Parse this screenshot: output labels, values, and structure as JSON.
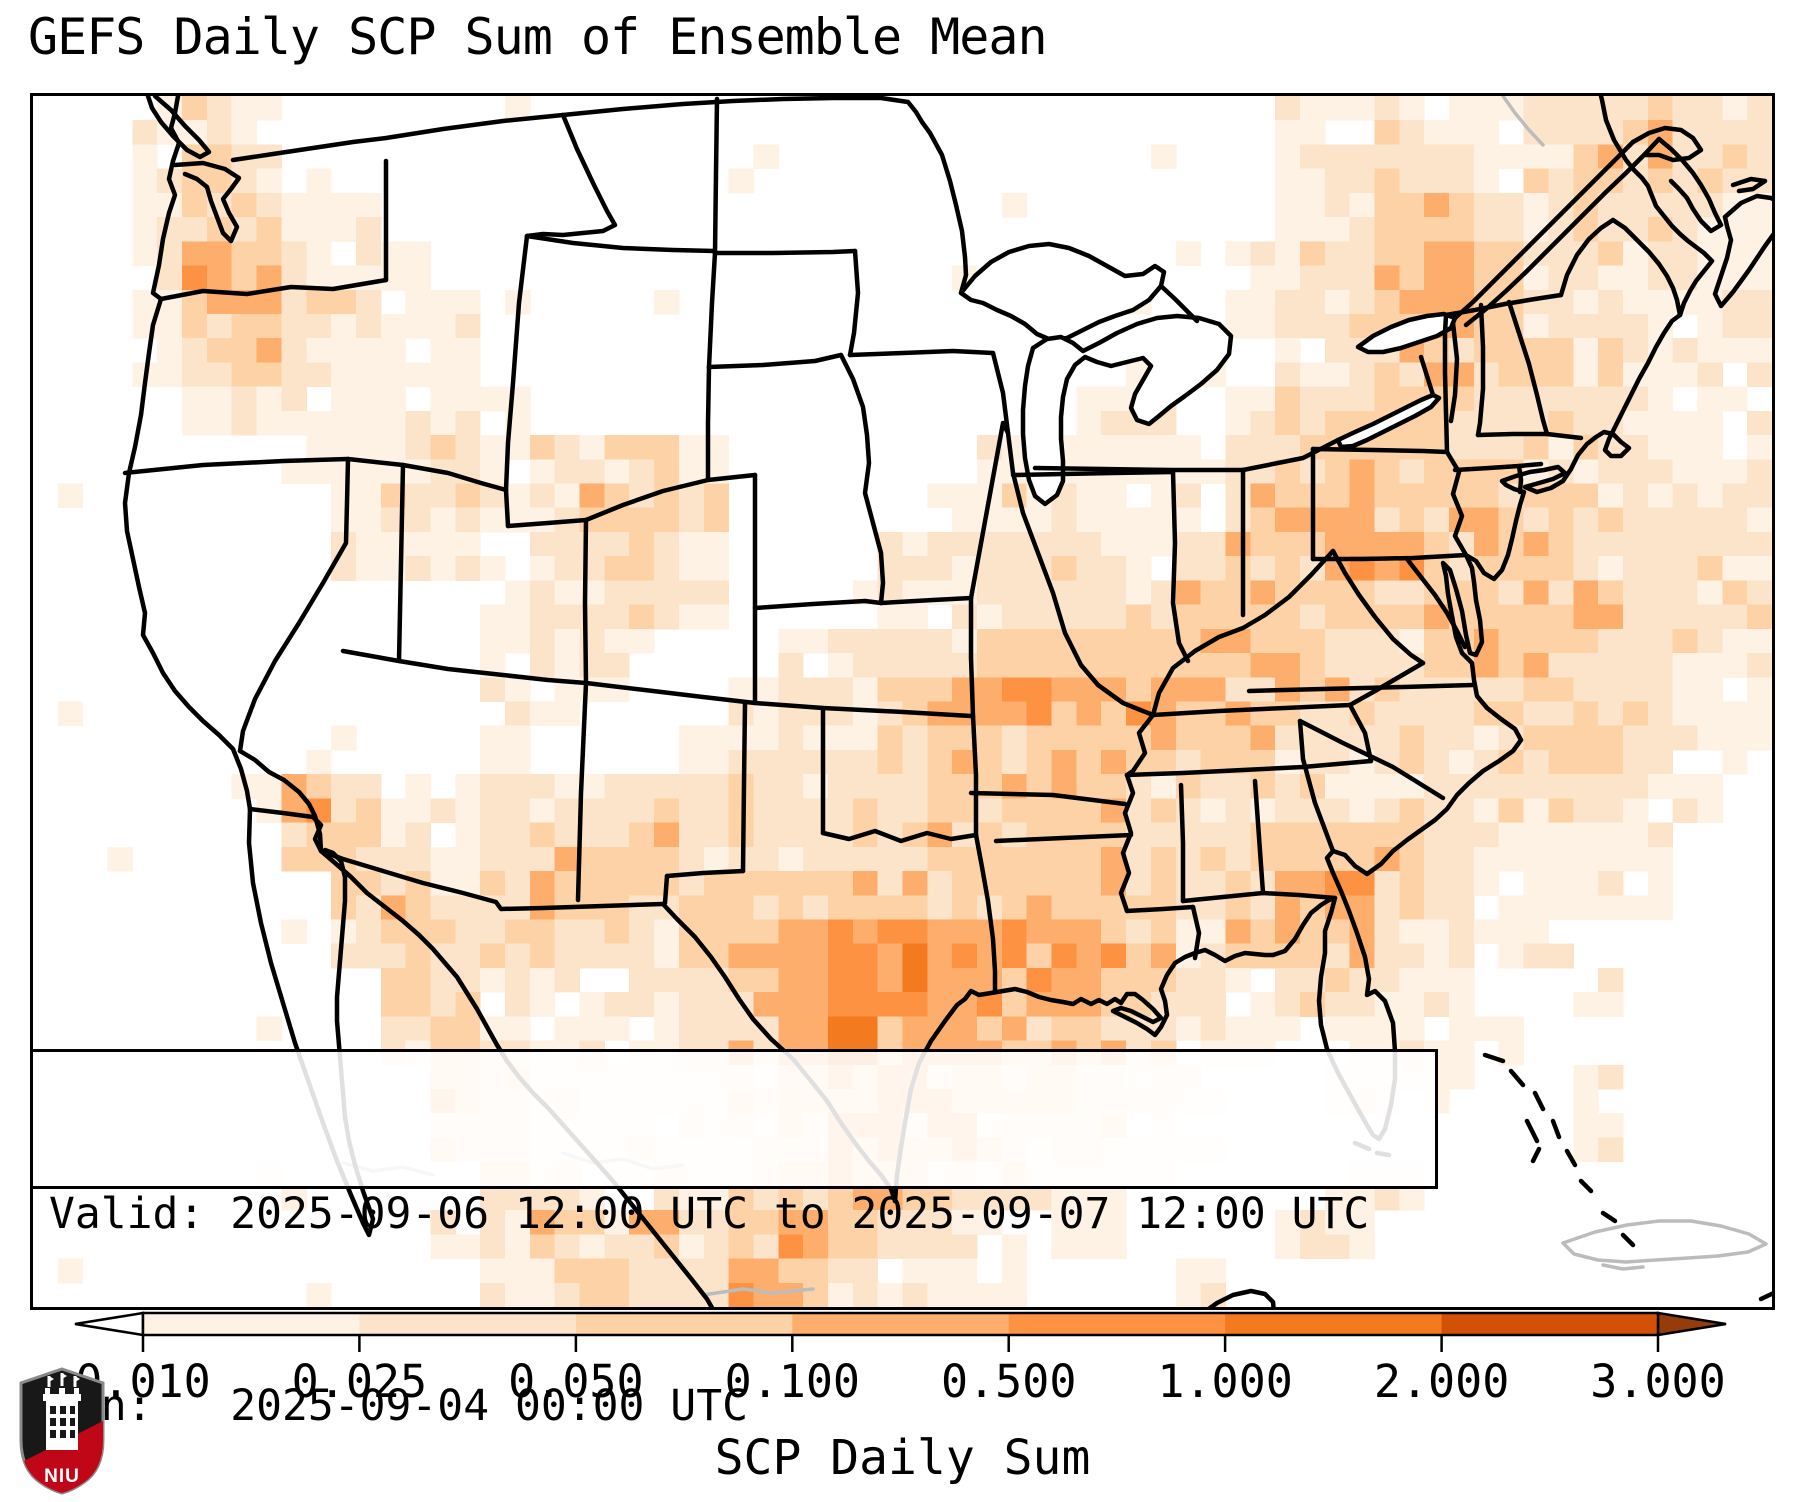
{
  "title": "GEFS Daily SCP Sum of Ensemble Mean",
  "info_box": {
    "valid_label": "Valid:",
    "valid_value": "2025-09-06 12:00 UTC to 2025-09-07 12:00 UTC",
    "run_label": "Run:",
    "run_value": "2025-09-04 00:00 UTC"
  },
  "logo": {
    "text": "NIU"
  },
  "chart_data": {
    "type": "heatmap",
    "title": "GEFS Daily SCP Sum of Ensemble Mean",
    "region": "CONUS and surroundings, lat/lon map with state borders",
    "valid": "2025-09-06 12:00 UTC to 2025-09-07 12:00 UTC",
    "run": "2025-09-04 00:00 UTC",
    "colorbar": {
      "label": "SCP Daily Sum",
      "tick_labels": [
        "0.010",
        "0.025",
        "0.050",
        "0.100",
        "0.500",
        "1.000",
        "2.000",
        "3.000"
      ],
      "segment_colors": [
        "#fdf2e3",
        "#fce4cb",
        "#fdd2a6",
        "#fdae6c",
        "#fd9243",
        "#f47a20",
        "#d25106"
      ],
      "under_color": "#ffffff",
      "over_color": "#963c0b",
      "extend": "both",
      "orientation": "horizontal"
    },
    "level_colors": [
      "#ffffff",
      "#fdf2e3",
      "#fce4cb",
      "#fdd2a6",
      "#fdae6c",
      "#fd9243",
      "#f47a20",
      "#d25106"
    ],
    "level_bins": [
      "<0.010",
      "0.010-0.025",
      "0.025-0.050",
      "0.050-0.100",
      "0.100-0.500",
      "0.500-1.000",
      "1.000-2.000",
      "2.000-3.000"
    ],
    "grid": {
      "cols": 35,
      "rows": 25,
      "note": "approximate SCP daily-sum intensity field read from the map, digit = color level index",
      "rows_data": [
        "00121000000000000000000001121122322",
        "00132100000000000000000001222123322",
        "00133110000000000000000001233223221",
        "00143211000000000000000012234322211",
        "00134221100000000000000012234322112",
        "00123211100000000000001101233332111",
        "00012111110000000000012012333222111",
        "00000111212231000001111123333322211",
        "00000012212332000012211133433332221",
        "00000011111231000122221233443332222",
        "00000000012221001112222333333333222",
        "00000000011210012223333333223332221",
        "00000000011100122334444433322332211",
        "00000000010001222333333332222233211",
        "00001421122222222233332222122222110",
        "00000332123332222233332223332111100",
        "00000033123323333333333234432111100",
        "00000023222223345544443134321110000",
        "00000003211122345544443212211001000",
        "00000002311112345444332111111100000",
        "00000000321111234433322100111001000",
        "00000000221111224332221100000001000",
        "00000000022111233322111000110000000",
        "00000000123232343221110001100000000",
        "00000000012322432111000100000000000"
      ]
    }
  }
}
